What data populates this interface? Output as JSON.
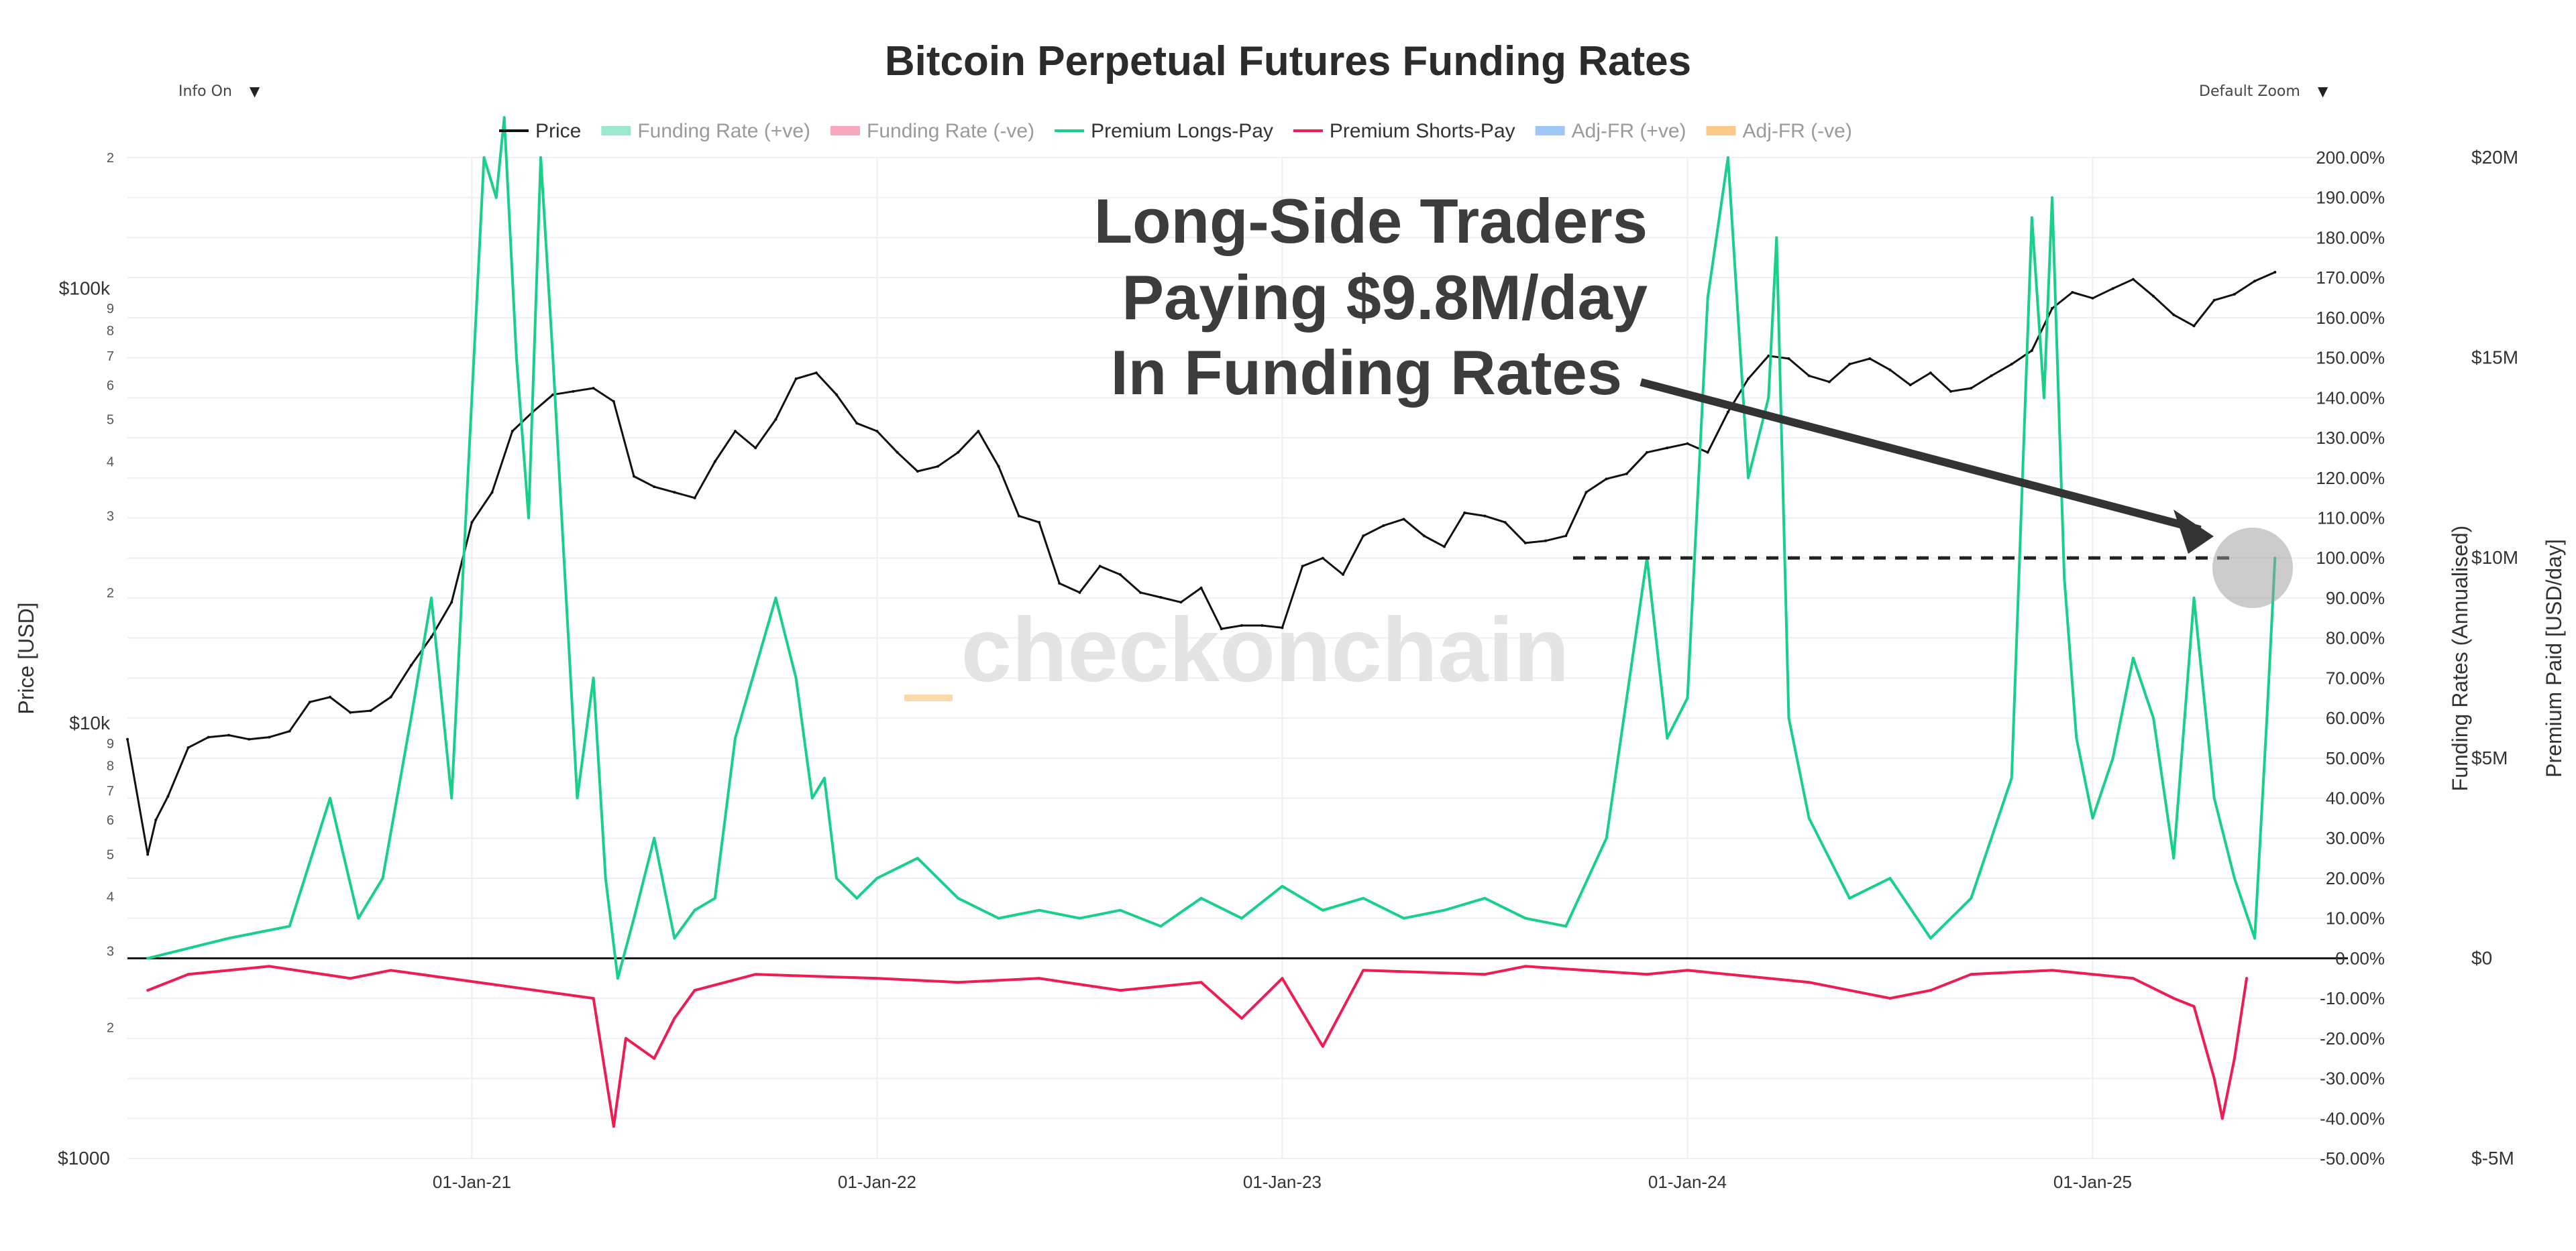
{
  "controls": {
    "info_label": "Info On",
    "zoom_label": "Default Zoom",
    "dropdown_arrow": "▼"
  },
  "chart_data": {
    "type": "line",
    "title": "Bitcoin Perpetual Futures Funding Rates",
    "legend": [
      {
        "name": "Price",
        "color": "#111111",
        "kind": "line",
        "active": true
      },
      {
        "name": "Funding Rate (+ve)",
        "color": "#9be8cd",
        "kind": "bar",
        "active": false
      },
      {
        "name": "Funding Rate (-ve)",
        "color": "#f6a9bd",
        "kind": "bar",
        "active": false
      },
      {
        "name": "Premium Longs-Pay",
        "color": "#19d08b",
        "kind": "line",
        "active": true
      },
      {
        "name": "Premium Shorts-Pay",
        "color": "#ee1c52",
        "kind": "line",
        "active": true
      },
      {
        "name": "Adj-FR (+ve)",
        "color": "#9ec7f5",
        "kind": "bar",
        "active": false
      },
      {
        "name": "Adj-FR (-ve)",
        "color": "#fbc98a",
        "kind": "bar",
        "active": false
      }
    ],
    "xlabel": "",
    "x_ticks": [
      "01-Jan-21",
      "01-Jan-22",
      "01-Jan-23",
      "01-Jan-24",
      "01-Jan-25"
    ],
    "x_tick_years": [
      2021,
      2022,
      2023,
      2024,
      2025
    ],
    "x_range": [
      2020.15,
      2025.63
    ],
    "y_left": {
      "label": "Price [USD]",
      "scale": "log",
      "range": [
        1000,
        200000
      ],
      "major_ticks": [
        {
          "value": 1000,
          "label": "$1000"
        },
        {
          "value": 10000,
          "label": "$10k"
        },
        {
          "value": 100000,
          "label": "$100k"
        }
      ],
      "minor_ticks": [
        {
          "value": 2000,
          "label": "2"
        },
        {
          "value": 3000,
          "label": "3"
        },
        {
          "value": 4000,
          "label": "4"
        },
        {
          "value": 5000,
          "label": "5"
        },
        {
          "value": 6000,
          "label": "6"
        },
        {
          "value": 7000,
          "label": "7"
        },
        {
          "value": 8000,
          "label": "8"
        },
        {
          "value": 9000,
          "label": "9"
        },
        {
          "value": 20000,
          "label": "2"
        },
        {
          "value": 30000,
          "label": "3"
        },
        {
          "value": 40000,
          "label": "4"
        },
        {
          "value": 50000,
          "label": "5"
        },
        {
          "value": 60000,
          "label": "6"
        },
        {
          "value": 70000,
          "label": "7"
        },
        {
          "value": 80000,
          "label": "8"
        },
        {
          "value": 90000,
          "label": "9"
        },
        {
          "value": 200000,
          "label": "2"
        }
      ]
    },
    "y_right_1": {
      "label": "Funding Rates (Annualised)",
      "range_pct": [
        -50,
        200
      ],
      "ticks": [
        "-50.00%",
        "-40.00%",
        "-30.00%",
        "-20.00%",
        "-10.00%",
        "0.00%",
        "10.00%",
        "20.00%",
        "30.00%",
        "40.00%",
        "50.00%",
        "60.00%",
        "70.00%",
        "80.00%",
        "90.00%",
        "100.00%",
        "110.00%",
        "120.00%",
        "130.00%",
        "140.00%",
        "150.00%",
        "160.00%",
        "170.00%",
        "180.00%",
        "190.00%",
        "200.00%"
      ]
    },
    "y_right_2": {
      "label": "Premium Paid [USD/day]",
      "range_musd": [
        -5,
        20
      ],
      "ticks": [
        {
          "value": -5,
          "label": "$-5M"
        },
        {
          "value": 0,
          "label": "$0"
        },
        {
          "value": 5,
          "label": "$5M"
        },
        {
          "value": 10,
          "label": "$10M"
        },
        {
          "value": 15,
          "label": "$15M"
        },
        {
          "value": 20,
          "label": "$20M"
        }
      ]
    },
    "series": [
      {
        "name": "Price",
        "axis": "left_log",
        "unit": "USD",
        "x": [
          2020.15,
          2020.2,
          2020.22,
          2020.25,
          2020.3,
          2020.35,
          2020.4,
          2020.45,
          2020.5,
          2020.55,
          2020.6,
          2020.65,
          2020.7,
          2020.75,
          2020.8,
          2020.85,
          2020.9,
          2020.95,
          2021.0,
          2021.05,
          2021.1,
          2021.15,
          2021.2,
          2021.25,
          2021.3,
          2021.35,
          2021.4,
          2021.45,
          2021.5,
          2021.55,
          2021.6,
          2021.65,
          2021.7,
          2021.75,
          2021.8,
          2021.85,
          2021.9,
          2021.95,
          2022.0,
          2022.05,
          2022.1,
          2022.15,
          2022.2,
          2022.25,
          2022.3,
          2022.35,
          2022.4,
          2022.45,
          2022.5,
          2022.55,
          2022.6,
          2022.65,
          2022.7,
          2022.75,
          2022.8,
          2022.85,
          2022.9,
          2022.95,
          2023.0,
          2023.05,
          2023.1,
          2023.15,
          2023.2,
          2023.25,
          2023.3,
          2023.35,
          2023.4,
          2023.45,
          2023.5,
          2023.55,
          2023.6,
          2023.65,
          2023.7,
          2023.75,
          2023.8,
          2023.85,
          2023.9,
          2023.95,
          2024.0,
          2024.05,
          2024.1,
          2024.15,
          2024.2,
          2024.25,
          2024.3,
          2024.35,
          2024.4,
          2024.45,
          2024.5,
          2024.55,
          2024.6,
          2024.65,
          2024.7,
          2024.75,
          2024.8,
          2024.85,
          2024.9,
          2024.95,
          2025.0,
          2025.05,
          2025.1,
          2025.15,
          2025.2,
          2025.25,
          2025.3,
          2025.35,
          2025.4,
          2025.45
        ],
        "values": [
          9200,
          5000,
          6000,
          6800,
          8800,
          9300,
          9400,
          9200,
          9300,
          9600,
          11200,
          11500,
          10600,
          10700,
          11500,
          13600,
          15800,
          19000,
          29000,
          34000,
          47000,
          52000,
          57000,
          58000,
          59000,
          55000,
          37000,
          35000,
          34000,
          33000,
          40000,
          47000,
          43000,
          50000,
          62000,
          64000,
          57000,
          49000,
          47000,
          42000,
          38000,
          39000,
          42000,
          47000,
          39000,
          30000,
          29000,
          21000,
          20000,
          23000,
          22000,
          20000,
          19500,
          19000,
          20500,
          16500,
          16800,
          16800,
          16600,
          23000,
          24000,
          22000,
          27000,
          28500,
          29500,
          27000,
          25500,
          30500,
          30000,
          29000,
          26000,
          26300,
          27000,
          34000,
          36500,
          37500,
          42000,
          43000,
          44000,
          42000,
          52000,
          62000,
          70000,
          69000,
          63000,
          61000,
          67000,
          69000,
          65000,
          60000,
          64000,
          58000,
          59000,
          63000,
          67000,
          72000,
          90000,
          98000,
          95000,
          100000,
          105000,
          96000,
          87000,
          82000,
          94000,
          97000,
          104000,
          109000
        ]
      },
      {
        "name": "Premium Longs-Pay",
        "axis": "right_pct",
        "unit": "% annualised",
        "x": [
          2020.2,
          2020.4,
          2020.55,
          2020.65,
          2020.72,
          2020.78,
          2020.85,
          2020.9,
          2020.95,
          2021.0,
          2021.03,
          2021.06,
          2021.08,
          2021.11,
          2021.14,
          2021.17,
          2021.2,
          2021.23,
          2021.26,
          2021.3,
          2021.33,
          2021.36,
          2021.4,
          2021.45,
          2021.5,
          2021.55,
          2021.6,
          2021.65,
          2021.75,
          2021.8,
          2021.84,
          2021.87,
          2021.9,
          2021.95,
          2022.0,
          2022.1,
          2022.2,
          2022.3,
          2022.4,
          2022.5,
          2022.6,
          2022.7,
          2022.8,
          2022.9,
          2023.0,
          2023.1,
          2023.2,
          2023.3,
          2023.4,
          2023.5,
          2023.6,
          2023.7,
          2023.8,
          2023.85,
          2023.9,
          2023.95,
          2024.0,
          2024.05,
          2024.1,
          2024.15,
          2024.2,
          2024.22,
          2024.25,
          2024.3,
          2024.4,
          2024.5,
          2024.6,
          2024.7,
          2024.8,
          2024.85,
          2024.88,
          2024.9,
          2024.93,
          2024.96,
          2025.0,
          2025.05,
          2025.1,
          2025.15,
          2025.2,
          2025.25,
          2025.3,
          2025.35,
          2025.4,
          2025.43,
          2025.45
        ],
        "values": [
          0,
          5,
          8,
          40,
          10,
          20,
          60,
          90,
          40,
          140,
          200,
          190,
          210,
          150,
          110,
          200,
          150,
          95,
          40,
          70,
          20,
          -5,
          10,
          30,
          5,
          12,
          15,
          55,
          90,
          70,
          40,
          45,
          20,
          15,
          20,
          25,
          15,
          10,
          12,
          10,
          12,
          8,
          15,
          10,
          18,
          12,
          15,
          10,
          12,
          15,
          10,
          8,
          30,
          65,
          100,
          55,
          65,
          165,
          200,
          120,
          140,
          180,
          60,
          35,
          15,
          20,
          5,
          15,
          45,
          185,
          140,
          190,
          95,
          55,
          35,
          50,
          75,
          60,
          25,
          90,
          40,
          20,
          5,
          60,
          100
        ]
      },
      {
        "name": "Premium Shorts-Pay",
        "axis": "right_pct",
        "unit": "% annualised",
        "x": [
          2020.2,
          2020.3,
          2020.5,
          2020.7,
          2020.8,
          2021.3,
          2021.35,
          2021.38,
          2021.45,
          2021.5,
          2021.55,
          2021.7,
          2022.0,
          2022.2,
          2022.4,
          2022.6,
          2022.8,
          2022.9,
          2023.0,
          2023.1,
          2023.2,
          2023.5,
          2023.6,
          2023.9,
          2024.0,
          2024.3,
          2024.5,
          2024.6,
          2024.7,
          2024.9,
          2025.1,
          2025.2,
          2025.25,
          2025.3,
          2025.32,
          2025.35,
          2025.38
        ],
        "values": [
          -8,
          -4,
          -2,
          -5,
          -3,
          -10,
          -42,
          -20,
          -25,
          -15,
          -8,
          -4,
          -5,
          -6,
          -5,
          -8,
          -6,
          -15,
          -5,
          -22,
          -3,
          -4,
          -2,
          -4,
          -3,
          -6,
          -10,
          -8,
          -4,
          -3,
          -5,
          -10,
          -12,
          -30,
          -40,
          -25,
          -5
        ]
      }
    ],
    "reference_level": {
      "value_pct": 100,
      "style": "dashed",
      "color": "#222222"
    },
    "watermark": "checkonchain",
    "annotation": {
      "lines": [
        "Long-Side Traders",
        "Paying $9.8M/day",
        "In Funding Rates"
      ],
      "value_musd_per_day": 9.8
    },
    "grid": true
  }
}
